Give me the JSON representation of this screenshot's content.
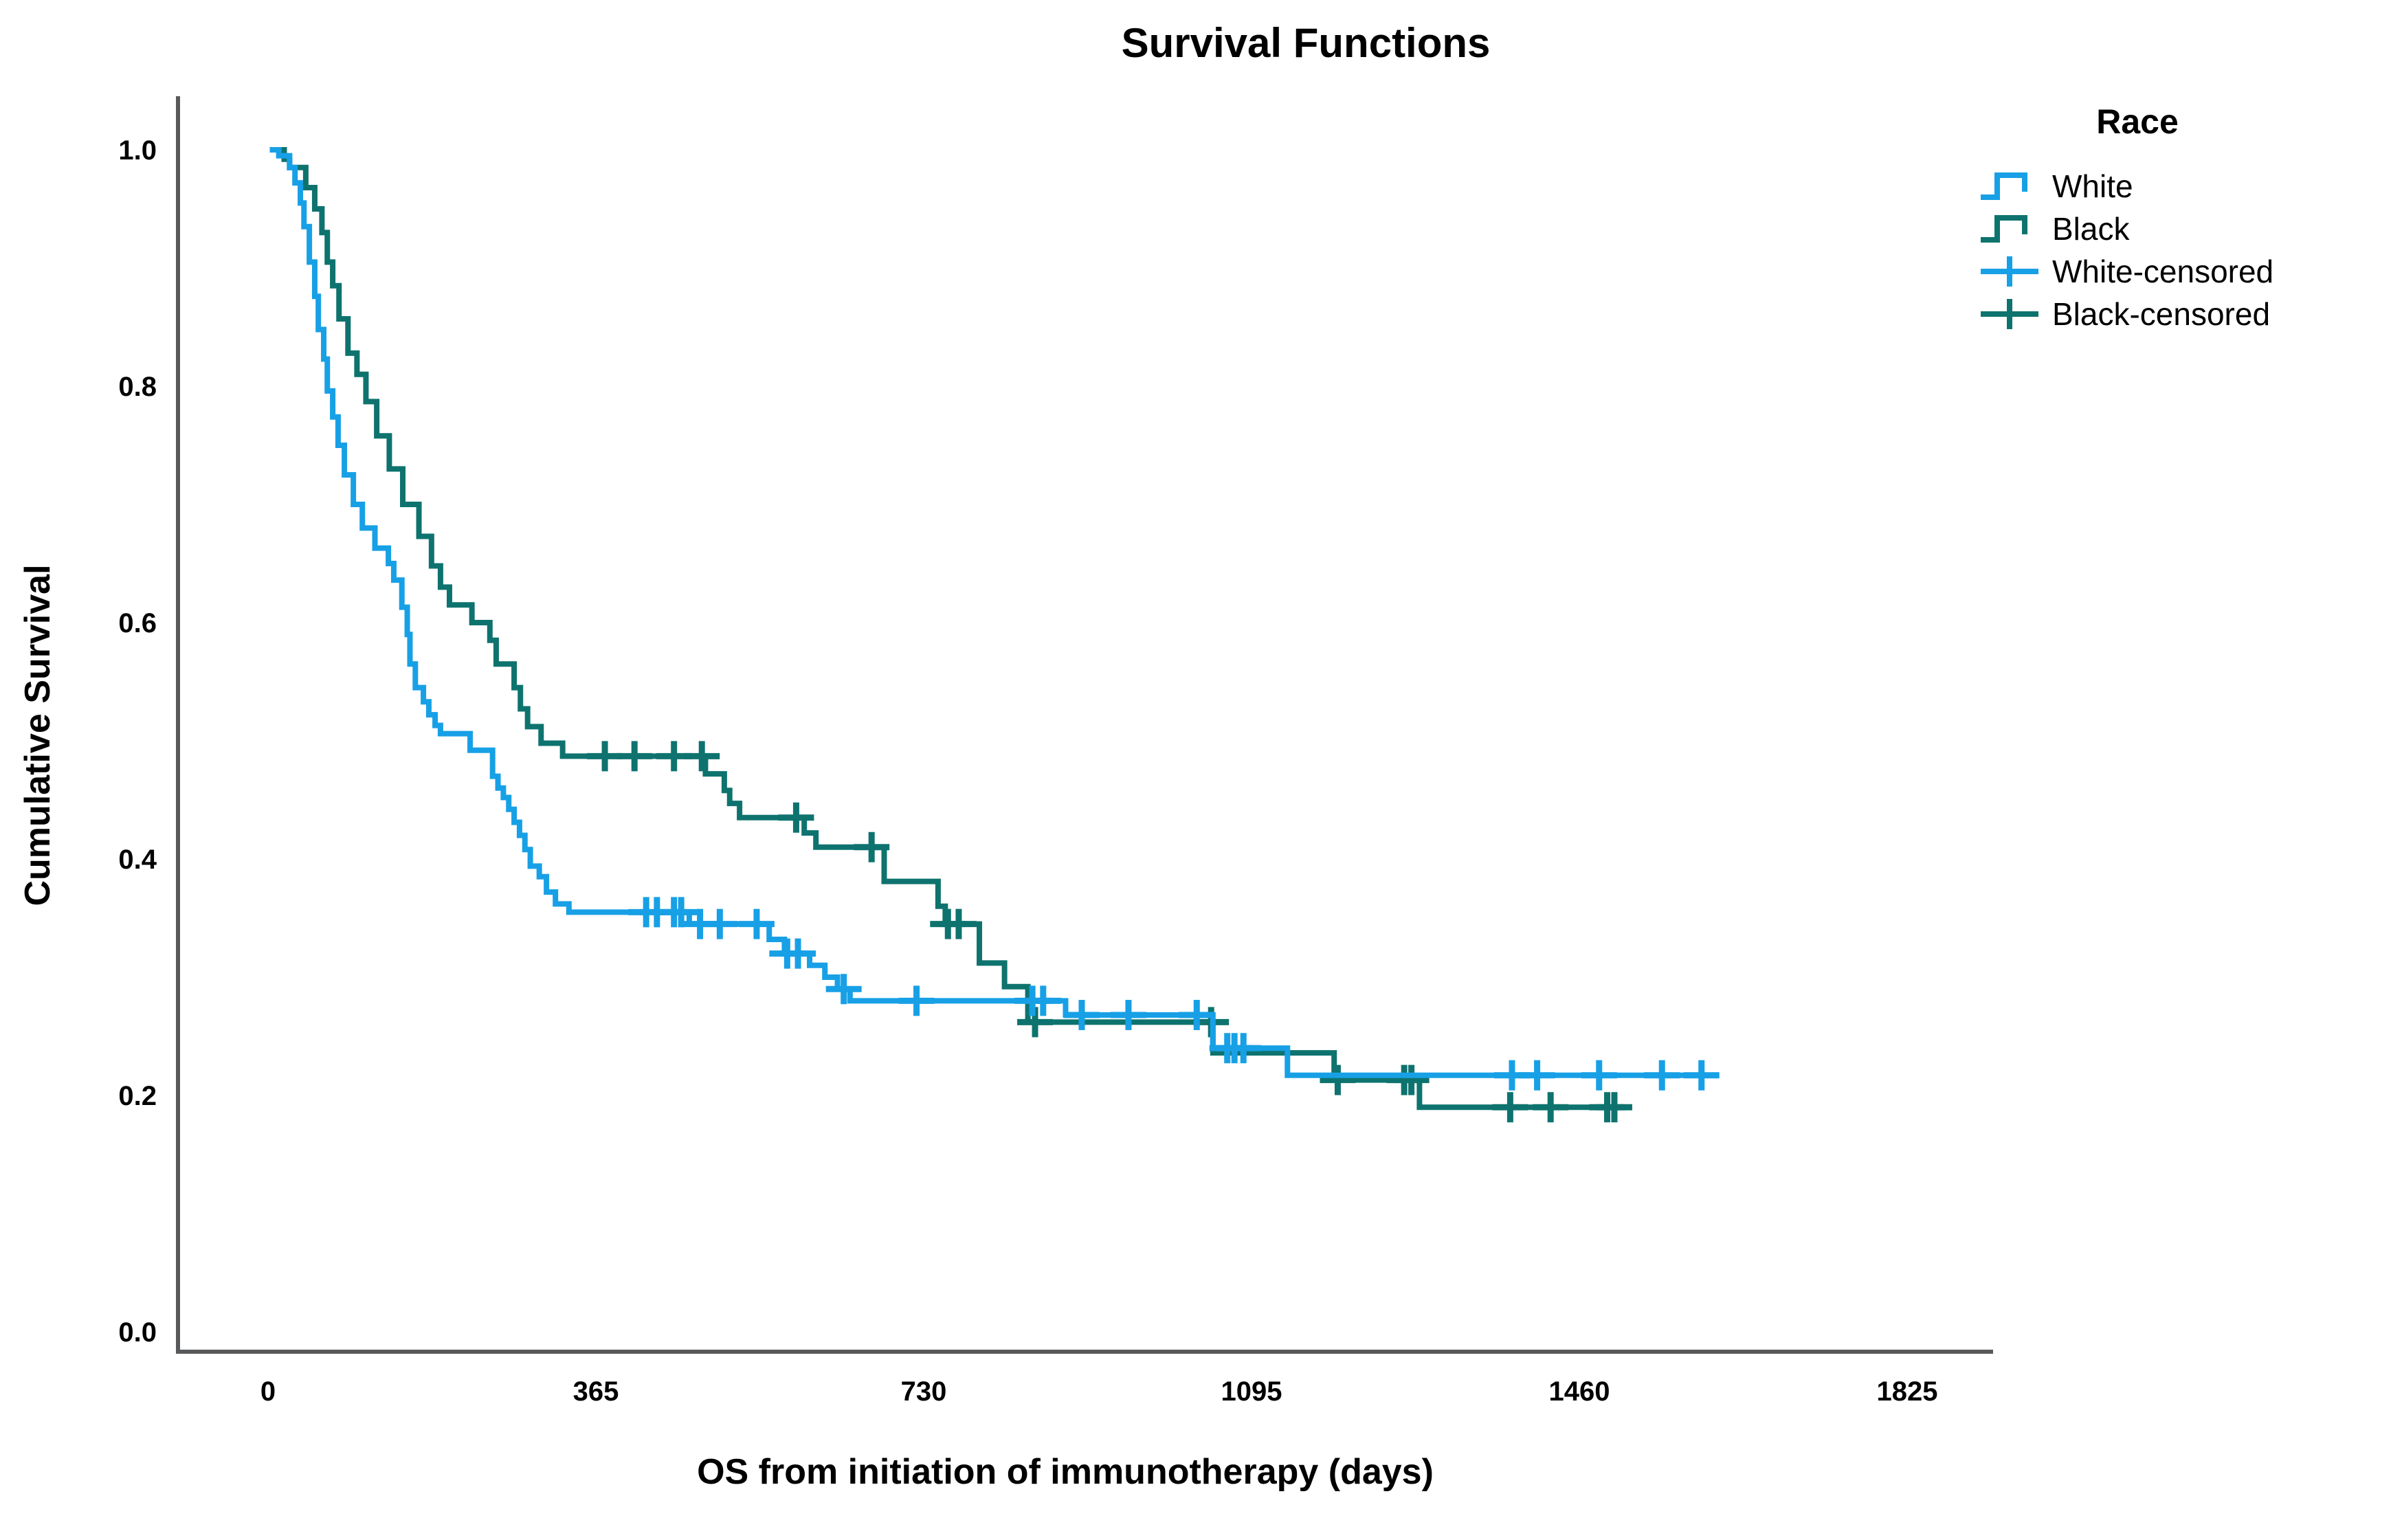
{
  "chart_title": "Survival Functions",
  "axes": {
    "x_label": "OS from initiation of immunotherapy (days)",
    "y_label": "Cumulative Survival"
  },
  "legend": {
    "title": "Race",
    "items": [
      {
        "label": "White",
        "series": "White",
        "glyph": "step"
      },
      {
        "label": "Black",
        "series": "Black",
        "glyph": "step"
      },
      {
        "label": "White-censored",
        "series": "White",
        "glyph": "censored"
      },
      {
        "label": "Black-censored",
        "series": "Black",
        "glyph": "censored"
      }
    ]
  },
  "chart_data": {
    "type": "line",
    "subtype": "kaplan-meier-step",
    "title": "Survival Functions",
    "xlabel": "OS from initiation of immunotherapy (days)",
    "ylabel": "Cumulative Survival",
    "xlim": [
      0,
      1825
    ],
    "ylim": [
      0.0,
      1.0
    ],
    "x_ticks": [
      0,
      365,
      730,
      1095,
      1460,
      1825
    ],
    "y_ticks": [
      1.0,
      0.8,
      0.6,
      0.4,
      0.2,
      0.0
    ],
    "grid": false,
    "legend_title": "Race",
    "legend_position": "top-right",
    "series": [
      {
        "name": "White",
        "color": "#17A0E6",
        "end_day": 1610,
        "steps": [
          [
            2,
            1.0
          ],
          [
            12,
            0.995
          ],
          [
            24,
            0.985
          ],
          [
            30,
            0.972
          ],
          [
            36,
            0.955
          ],
          [
            40,
            0.935
          ],
          [
            46,
            0.905
          ],
          [
            52,
            0.876
          ],
          [
            56,
            0.848
          ],
          [
            62,
            0.823
          ],
          [
            66,
            0.796
          ],
          [
            72,
            0.774
          ],
          [
            78,
            0.75
          ],
          [
            85,
            0.725
          ],
          [
            95,
            0.7
          ],
          [
            105,
            0.68
          ],
          [
            119,
            0.663
          ],
          [
            134,
            0.65
          ],
          [
            140,
            0.636
          ],
          [
            149,
            0.613
          ],
          [
            155,
            0.59
          ],
          [
            158,
            0.565
          ],
          [
            164,
            0.545
          ],
          [
            173,
            0.533
          ],
          [
            179,
            0.522
          ],
          [
            186,
            0.513
          ],
          [
            192,
            0.506
          ],
          [
            225,
            0.492
          ],
          [
            250,
            0.47
          ],
          [
            256,
            0.46
          ],
          [
            262,
            0.452
          ],
          [
            268,
            0.442
          ],
          [
            274,
            0.431
          ],
          [
            280,
            0.42
          ],
          [
            286,
            0.408
          ],
          [
            292,
            0.394
          ],
          [
            302,
            0.385
          ],
          [
            310,
            0.372
          ],
          [
            320,
            0.362
          ],
          [
            335,
            0.355
          ],
          [
            469,
            0.345
          ],
          [
            558,
            0.332
          ],
          [
            575,
            0.32
          ],
          [
            603,
            0.31
          ],
          [
            620,
            0.3
          ],
          [
            634,
            0.29
          ],
          [
            648,
            0.28
          ],
          [
            888,
            0.268
          ],
          [
            1052,
            0.24
          ],
          [
            1135,
            0.217
          ]
        ],
        "censored": [
          [
            421,
            0.355
          ],
          [
            433,
            0.355
          ],
          [
            452,
            0.355
          ],
          [
            460,
            0.355
          ],
          [
            481,
            0.345
          ],
          [
            503,
            0.345
          ],
          [
            544,
            0.345
          ],
          [
            578,
            0.32
          ],
          [
            590,
            0.32
          ],
          [
            641,
            0.29
          ],
          [
            722,
            0.28
          ],
          [
            851,
            0.28
          ],
          [
            863,
            0.28
          ],
          [
            906,
            0.268
          ],
          [
            958,
            0.268
          ],
          [
            1034,
            0.268
          ],
          [
            1068,
            0.24
          ],
          [
            1076,
            0.24
          ],
          [
            1086,
            0.24
          ],
          [
            1385,
            0.217
          ],
          [
            1413,
            0.217
          ],
          [
            1482,
            0.217
          ],
          [
            1552,
            0.217
          ],
          [
            1596,
            0.217
          ]
        ]
      },
      {
        "name": "Black",
        "color": "#0E736E",
        "end_day": 1507,
        "steps": [
          [
            2,
            1.0
          ],
          [
            18,
            0.992
          ],
          [
            24,
            0.985
          ],
          [
            42,
            0.968
          ],
          [
            52,
            0.95
          ],
          [
            60,
            0.93
          ],
          [
            66,
            0.905
          ],
          [
            72,
            0.885
          ],
          [
            79,
            0.857
          ],
          [
            89,
            0.828
          ],
          [
            99,
            0.81
          ],
          [
            109,
            0.787
          ],
          [
            121,
            0.758
          ],
          [
            135,
            0.73
          ],
          [
            150,
            0.7
          ],
          [
            168,
            0.673
          ],
          [
            182,
            0.648
          ],
          [
            192,
            0.63
          ],
          [
            202,
            0.615
          ],
          [
            227,
            0.6
          ],
          [
            247,
            0.585
          ],
          [
            254,
            0.565
          ],
          [
            274,
            0.545
          ],
          [
            281,
            0.527
          ],
          [
            289,
            0.512
          ],
          [
            304,
            0.498
          ],
          [
            328,
            0.487
          ],
          [
            487,
            0.472
          ],
          [
            508,
            0.458
          ],
          [
            514,
            0.447
          ],
          [
            525,
            0.435
          ],
          [
            597,
            0.422
          ],
          [
            610,
            0.41
          ],
          [
            686,
            0.381
          ],
          [
            746,
            0.36
          ],
          [
            754,
            0.345
          ],
          [
            792,
            0.312
          ],
          [
            820,
            0.292
          ],
          [
            846,
            0.262
          ],
          [
            1052,
            0.236
          ],
          [
            1187,
            0.213
          ],
          [
            1282,
            0.19
          ]
        ],
        "censored": [
          [
            375,
            0.487
          ],
          [
            408,
            0.487
          ],
          [
            452,
            0.487
          ],
          [
            483,
            0.487
          ],
          [
            588,
            0.435
          ],
          [
            672,
            0.41
          ],
          [
            757,
            0.345
          ],
          [
            769,
            0.345
          ],
          [
            854,
            0.262
          ],
          [
            1050,
            0.262
          ],
          [
            1191,
            0.213
          ],
          [
            1265,
            0.213
          ],
          [
            1273,
            0.213
          ],
          [
            1383,
            0.19
          ],
          [
            1428,
            0.19
          ],
          [
            1491,
            0.19
          ],
          [
            1499,
            0.19
          ]
        ]
      }
    ]
  },
  "colors": {
    "axis": "#58595B",
    "text": "#000000",
    "background": "#FFFFFF",
    "white_series": "#17A0E6",
    "black_series": "#0E736E"
  }
}
